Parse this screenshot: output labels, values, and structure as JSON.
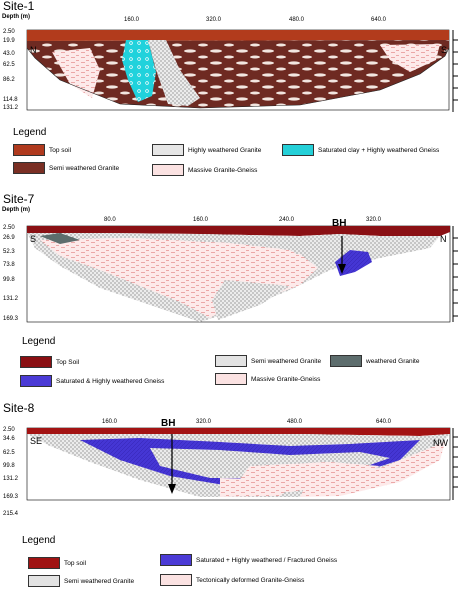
{
  "sites": [
    {
      "title": "Site-1",
      "depth_label": "Depth (m)",
      "x_ticks": [
        "160.0",
        "320.0",
        "480.0",
        "640.0"
      ],
      "depth_ticks": [
        "2.50",
        "19.9",
        "43.0",
        "62.5",
        "86.2",
        "114.8",
        "131.2"
      ],
      "left_dir": "N",
      "right_dir": "S",
      "legend_title": "Legend",
      "legend": [
        {
          "label": "Top soil",
          "color": "#b03a1e"
        },
        {
          "label": "Semi weathered Granite",
          "color": "#7a2f24"
        },
        {
          "label": "Highly weathered Granite",
          "color": "#e6e6e6"
        },
        {
          "label": "Saturated clay + Highly weathered Gneiss",
          "color": "#25d0d8"
        },
        {
          "label": "Massive Granite-Gneiss",
          "color": "#fbe2e2"
        }
      ]
    },
    {
      "title": "Site-7",
      "depth_label": "Depth (m)",
      "x_ticks": [
        "80.0",
        "160.0",
        "240.0",
        "320.0"
      ],
      "depth_ticks": [
        "2.50",
        "26.9",
        "52.3",
        "73.8",
        "99.8",
        "131.2",
        "169.3"
      ],
      "left_dir": "S",
      "right_dir": "N",
      "bh": "BH",
      "legend_title": "Legend",
      "legend": [
        {
          "label": "Top Soil",
          "color": "#8a0f12"
        },
        {
          "label": "Semi weathered Granite",
          "color": "#e3e3e3"
        },
        {
          "label": "weathered Granite",
          "color": "#5d6d6d"
        },
        {
          "label": "Saturated & Highly weathered Gneiss",
          "color": "#4b3bd6"
        },
        {
          "label": "Massive Granite-Gneiss",
          "color": "#fbe2e2"
        }
      ]
    },
    {
      "title": "Site-8",
      "x_ticks": [
        "160.0",
        "320.0",
        "480.0",
        "640.0"
      ],
      "depth_ticks": [
        "2.50",
        "34.6",
        "62.5",
        "99.8",
        "131.2",
        "169.3",
        "215.4"
      ],
      "left_dir": "SE",
      "right_dir": "NW",
      "bh": "BH",
      "legend_title": "Legend",
      "legend": [
        {
          "label": "Top soil",
          "color": "#a01313"
        },
        {
          "label": "Saturated + Highly weathered / Fractured Gneiss",
          "color": "#4b3bd6"
        },
        {
          "label": "Semi weathered Granite",
          "color": "#e3e3e3"
        },
        {
          "label": "Tectonically deformed Granite-Gneiss",
          "color": "#fbe2e2"
        }
      ]
    }
  ]
}
